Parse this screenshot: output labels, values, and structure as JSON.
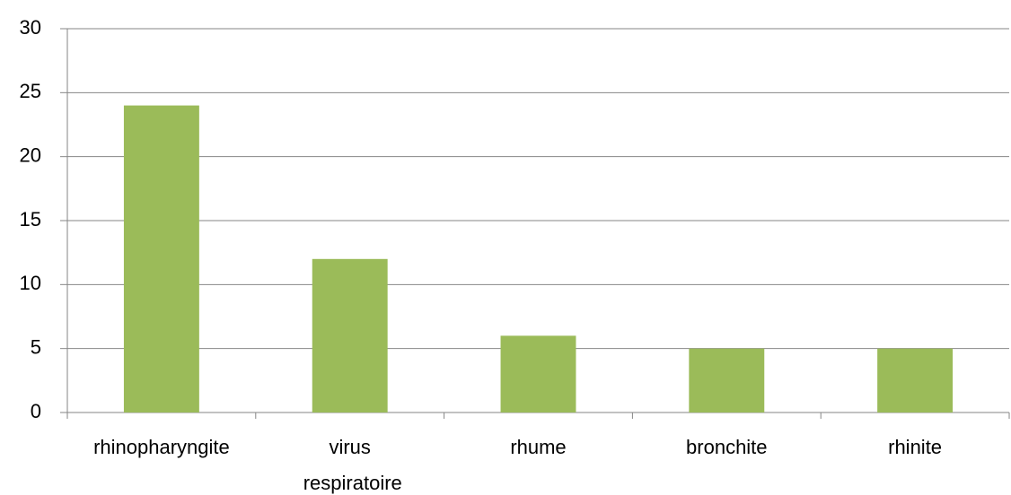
{
  "chart_data": {
    "type": "bar",
    "categories": [
      "rhinopharyngite",
      "virus respiratoire",
      "rhume",
      "bronchite",
      "rhinite"
    ],
    "values": [
      24,
      12,
      6,
      5,
      5
    ],
    "color": "#9bbb59",
    "ylim": [
      0,
      30
    ],
    "yticks": [
      0,
      5,
      10,
      15,
      20,
      25,
      30
    ],
    "grid": true
  }
}
